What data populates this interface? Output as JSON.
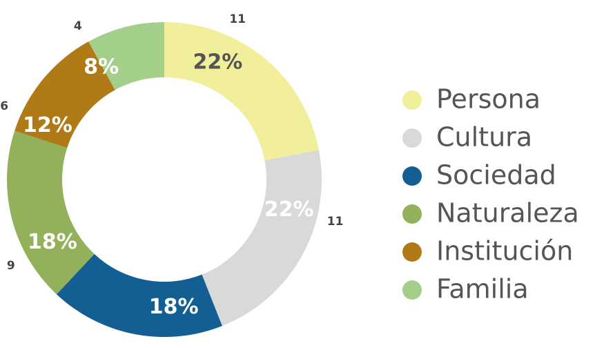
{
  "chart_data": {
    "type": "donut",
    "categories": [
      "Persona",
      "Cultura",
      "Sociedad",
      "Naturaleza",
      "Institución",
      "Familia"
    ],
    "values": [
      22,
      22,
      18,
      18,
      12,
      8
    ],
    "value_labels": [
      "22%",
      "22%",
      "18%",
      "18%",
      "12%",
      "8%"
    ],
    "counts": [
      11,
      11,
      9,
      9,
      6,
      4
    ],
    "colors": [
      "#f2ef9c",
      "#d9d9d9",
      "#135f94",
      "#93b05a",
      "#b07b16",
      "#a3cf8b"
    ],
    "label_colors": [
      "#555555",
      "#ffffff",
      "#ffffff",
      "#ffffff",
      "#ffffff",
      "#ffffff"
    ],
    "legend": "right"
  }
}
